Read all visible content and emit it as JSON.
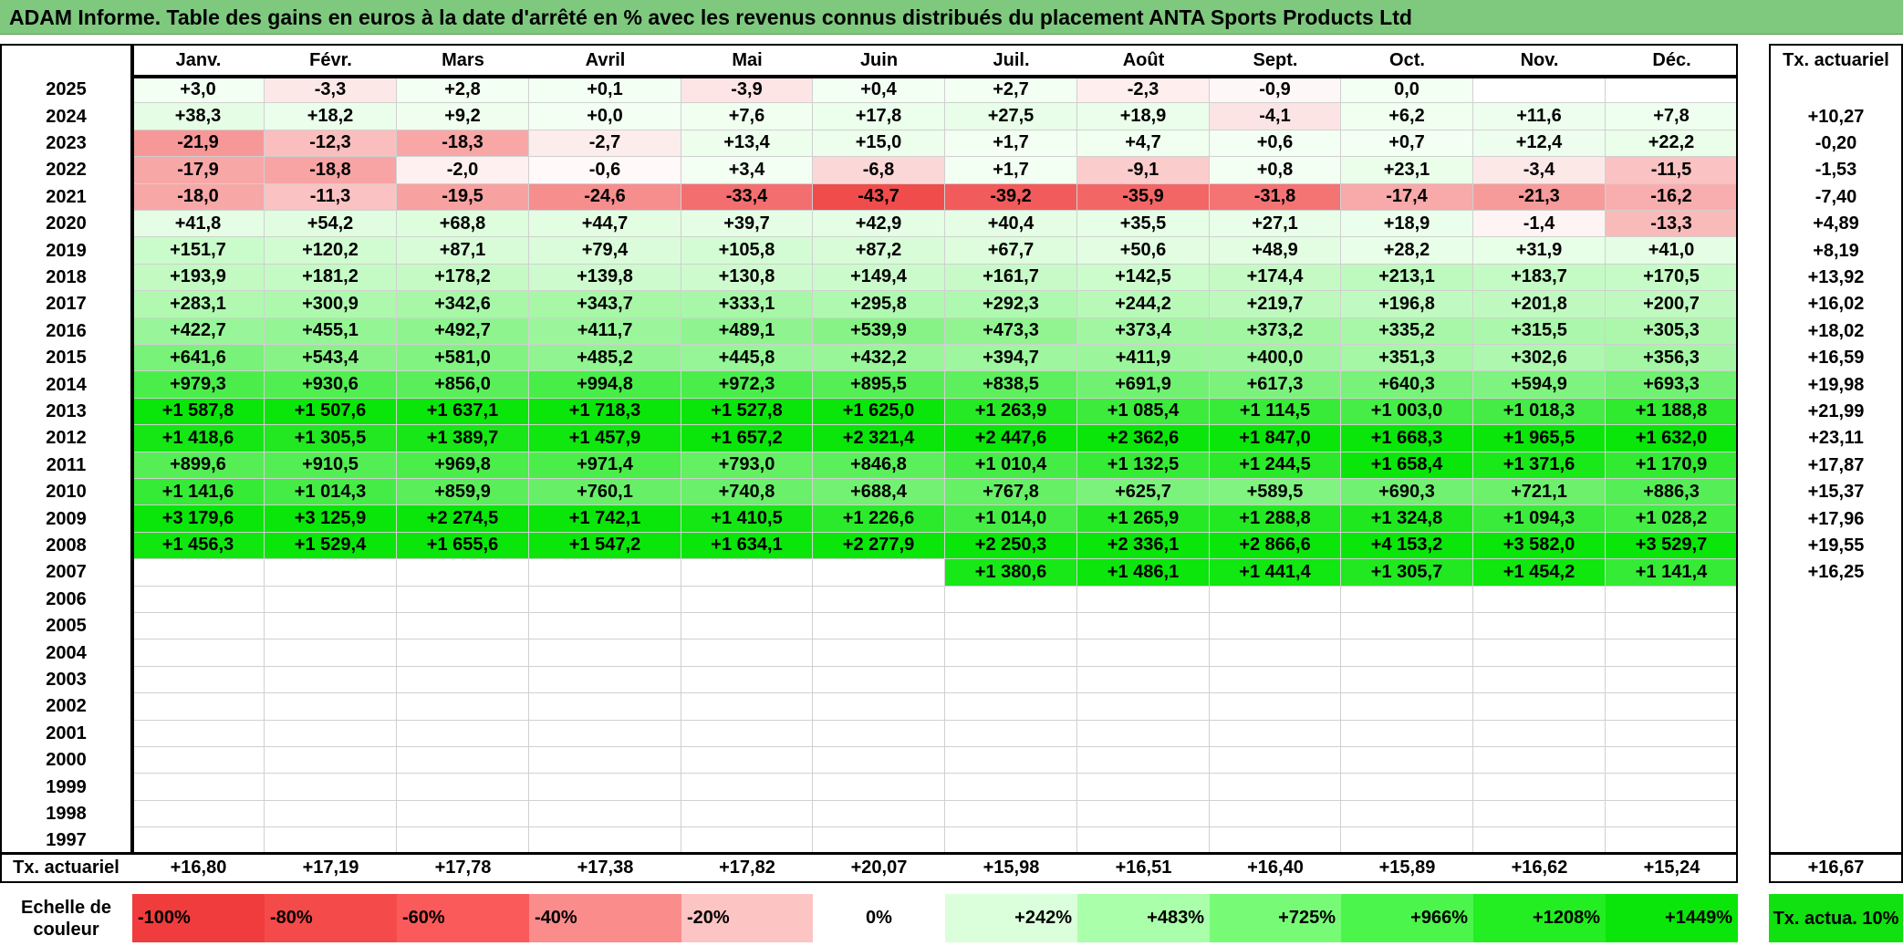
{
  "title": "ADAM Informe. Table des gains en euros à la date d'arrêté en % avec les revenus connus distribués du placement ANTA Sports Products Ltd",
  "chart_data": {
    "type": "heatmap",
    "months": [
      "Janv.",
      "Févr.",
      "Mars",
      "Avril",
      "Mai",
      "Juin",
      "Juil.",
      "Août",
      "Sept.",
      "Oct.",
      "Nov.",
      "Déc."
    ],
    "annual_header": "Tx. actuariel",
    "rows": [
      {
        "year": "2025",
        "values": [
          "+3,0",
          "-3,3",
          "+2,8",
          "+0,1",
          "-3,9",
          "+0,4",
          "+2,7",
          "-2,3",
          "-0,9",
          "0,0",
          "",
          ""
        ],
        "annual": ""
      },
      {
        "year": "2024",
        "values": [
          "+38,3",
          "+18,2",
          "+9,2",
          "+0,0",
          "+7,6",
          "+17,8",
          "+27,5",
          "+18,9",
          "-4,1",
          "+6,2",
          "+11,6",
          "+7,8"
        ],
        "annual": "+10,27"
      },
      {
        "year": "2023",
        "values": [
          "-21,9",
          "-12,3",
          "-18,3",
          "-2,7",
          "+13,4",
          "+15,0",
          "+1,7",
          "+4,7",
          "+0,6",
          "+0,7",
          "+12,4",
          "+22,2"
        ],
        "annual": "-0,20"
      },
      {
        "year": "2022",
        "values": [
          "-17,9",
          "-18,8",
          "-2,0",
          "-0,6",
          "+3,4",
          "-6,8",
          "+1,7",
          "-9,1",
          "+0,8",
          "+23,1",
          "-3,4",
          "-11,5"
        ],
        "annual": "-1,53"
      },
      {
        "year": "2021",
        "values": [
          "-18,0",
          "-11,3",
          "-19,5",
          "-24,6",
          "-33,4",
          "-43,7",
          "-39,2",
          "-35,9",
          "-31,8",
          "-17,4",
          "-21,3",
          "-16,2"
        ],
        "annual": "-7,40"
      },
      {
        "year": "2020",
        "values": [
          "+41,8",
          "+54,2",
          "+68,8",
          "+44,7",
          "+39,7",
          "+42,9",
          "+40,4",
          "+35,5",
          "+27,1",
          "+18,9",
          "-1,4",
          "-13,3"
        ],
        "annual": "+4,89"
      },
      {
        "year": "2019",
        "values": [
          "+151,7",
          "+120,2",
          "+87,1",
          "+79,4",
          "+105,8",
          "+87,2",
          "+67,7",
          "+50,6",
          "+48,9",
          "+28,2",
          "+31,9",
          "+41,0"
        ],
        "annual": "+8,19"
      },
      {
        "year": "2018",
        "values": [
          "+193,9",
          "+181,2",
          "+178,2",
          "+139,8",
          "+130,8",
          "+149,4",
          "+161,7",
          "+142,5",
          "+174,4",
          "+213,1",
          "+183,7",
          "+170,5"
        ],
        "annual": "+13,92"
      },
      {
        "year": "2017",
        "values": [
          "+283,1",
          "+300,9",
          "+342,6",
          "+343,7",
          "+333,1",
          "+295,8",
          "+292,3",
          "+244,2",
          "+219,7",
          "+196,8",
          "+201,8",
          "+200,7"
        ],
        "annual": "+16,02"
      },
      {
        "year": "2016",
        "values": [
          "+422,7",
          "+455,1",
          "+492,7",
          "+411,7",
          "+489,1",
          "+539,9",
          "+473,3",
          "+373,4",
          "+373,2",
          "+335,2",
          "+315,5",
          "+305,3"
        ],
        "annual": "+18,02"
      },
      {
        "year": "2015",
        "values": [
          "+641,6",
          "+543,4",
          "+581,0",
          "+485,2",
          "+445,8",
          "+432,2",
          "+394,7",
          "+411,9",
          "+400,0",
          "+351,3",
          "+302,6",
          "+356,3"
        ],
        "annual": "+16,59"
      },
      {
        "year": "2014",
        "values": [
          "+979,3",
          "+930,6",
          "+856,0",
          "+994,8",
          "+972,3",
          "+895,5",
          "+838,5",
          "+691,9",
          "+617,3",
          "+640,3",
          "+594,9",
          "+693,3"
        ],
        "annual": "+19,98"
      },
      {
        "year": "2013",
        "values": [
          "+1 587,8",
          "+1 507,6",
          "+1 637,1",
          "+1 718,3",
          "+1 527,8",
          "+1 625,0",
          "+1 263,9",
          "+1 085,4",
          "+1 114,5",
          "+1 003,0",
          "+1 018,3",
          "+1 188,8"
        ],
        "annual": "+21,99"
      },
      {
        "year": "2012",
        "values": [
          "+1 418,6",
          "+1 305,5",
          "+1 389,7",
          "+1 457,9",
          "+1 657,2",
          "+2 321,4",
          "+2 447,6",
          "+2 362,6",
          "+1 847,0",
          "+1 668,3",
          "+1 965,5",
          "+1 632,0"
        ],
        "annual": "+23,11"
      },
      {
        "year": "2011",
        "values": [
          "+899,6",
          "+910,5",
          "+969,8",
          "+971,4",
          "+793,0",
          "+846,8",
          "+1 010,4",
          "+1 132,5",
          "+1 244,5",
          "+1 658,4",
          "+1 371,6",
          "+1 170,9"
        ],
        "annual": "+17,87"
      },
      {
        "year": "2010",
        "values": [
          "+1 141,6",
          "+1 014,3",
          "+859,9",
          "+760,1",
          "+740,8",
          "+688,4",
          "+767,8",
          "+625,7",
          "+589,5",
          "+690,3",
          "+721,1",
          "+886,3"
        ],
        "annual": "+15,37"
      },
      {
        "year": "2009",
        "values": [
          "+3 179,6",
          "+3 125,9",
          "+2 274,5",
          "+1 742,1",
          "+1 410,5",
          "+1 226,6",
          "+1 014,0",
          "+1 265,9",
          "+1 288,8",
          "+1 324,8",
          "+1 094,3",
          "+1 028,2"
        ],
        "annual": "+17,96"
      },
      {
        "year": "2008",
        "values": [
          "+1 456,3",
          "+1 529,4",
          "+1 655,6",
          "+1 547,2",
          "+1 634,1",
          "+2 277,9",
          "+2 250,3",
          "+2 336,1",
          "+2 866,6",
          "+4 153,2",
          "+3 582,0",
          "+3 529,7"
        ],
        "annual": "+19,55"
      },
      {
        "year": "2007",
        "values": [
          "",
          "",
          "",
          "",
          "",
          "",
          "+1 380,6",
          "+1 486,1",
          "+1 441,4",
          "+1 305,7",
          "+1 454,2",
          "+1 141,4"
        ],
        "annual": "+16,25"
      },
      {
        "year": "2006",
        "values": [
          "",
          "",
          "",
          "",
          "",
          "",
          "",
          "",
          "",
          "",
          "",
          ""
        ],
        "annual": ""
      },
      {
        "year": "2005",
        "values": [
          "",
          "",
          "",
          "",
          "",
          "",
          "",
          "",
          "",
          "",
          "",
          ""
        ],
        "annual": ""
      },
      {
        "year": "2004",
        "values": [
          "",
          "",
          "",
          "",
          "",
          "",
          "",
          "",
          "",
          "",
          "",
          ""
        ],
        "annual": ""
      },
      {
        "year": "2003",
        "values": [
          "",
          "",
          "",
          "",
          "",
          "",
          "",
          "",
          "",
          "",
          "",
          ""
        ],
        "annual": ""
      },
      {
        "year": "2002",
        "values": [
          "",
          "",
          "",
          "",
          "",
          "",
          "",
          "",
          "",
          "",
          "",
          ""
        ],
        "annual": ""
      },
      {
        "year": "2001",
        "values": [
          "",
          "",
          "",
          "",
          "",
          "",
          "",
          "",
          "",
          "",
          "",
          ""
        ],
        "annual": ""
      },
      {
        "year": "2000",
        "values": [
          "",
          "",
          "",
          "",
          "",
          "",
          "",
          "",
          "",
          "",
          "",
          ""
        ],
        "annual": ""
      },
      {
        "year": "1999",
        "values": [
          "",
          "",
          "",
          "",
          "",
          "",
          "",
          "",
          "",
          "",
          "",
          ""
        ],
        "annual": ""
      },
      {
        "year": "1998",
        "values": [
          "",
          "",
          "",
          "",
          "",
          "",
          "",
          "",
          "",
          "",
          "",
          ""
        ],
        "annual": ""
      },
      {
        "year": "1997",
        "values": [
          "",
          "",
          "",
          "",
          "",
          "",
          "",
          "",
          "",
          "",
          "",
          ""
        ],
        "annual": ""
      }
    ],
    "footer": {
      "label": "Tx. actuariel",
      "values": [
        "+16,80",
        "+17,19",
        "+17,78",
        "+17,38",
        "+17,82",
        "+20,07",
        "+15,98",
        "+16,51",
        "+16,40",
        "+15,89",
        "+16,62",
        "+15,24"
      ],
      "annual": "+16,67"
    },
    "legend": {
      "label": "Echelle de couleur",
      "items": [
        {
          "label": "-100%",
          "color": "#f03c3c"
        },
        {
          "label": "-80%",
          "color": "#f54a4a"
        },
        {
          "label": "-60%",
          "color": "#fa5a5a"
        },
        {
          "label": "-40%",
          "color": "#fb8c8c"
        },
        {
          "label": "-20%",
          "color": "#fdc4c4"
        },
        {
          "label": "0%",
          "color": "#ffffff"
        },
        {
          "label": "+242%",
          "color": "#dbffdb"
        },
        {
          "label": "+483%",
          "color": "#aaffaa"
        },
        {
          "label": "+725%",
          "color": "#77fb77"
        },
        {
          "label": "+966%",
          "color": "#4cf54c"
        },
        {
          "label": "+1208%",
          "color": "#22ee22"
        },
        {
          "label": "+1449%",
          "color": "#0ae60a"
        }
      ],
      "annual_item": {
        "label": "Tx. actua. 10%",
        "color": "#11e011"
      }
    }
  }
}
